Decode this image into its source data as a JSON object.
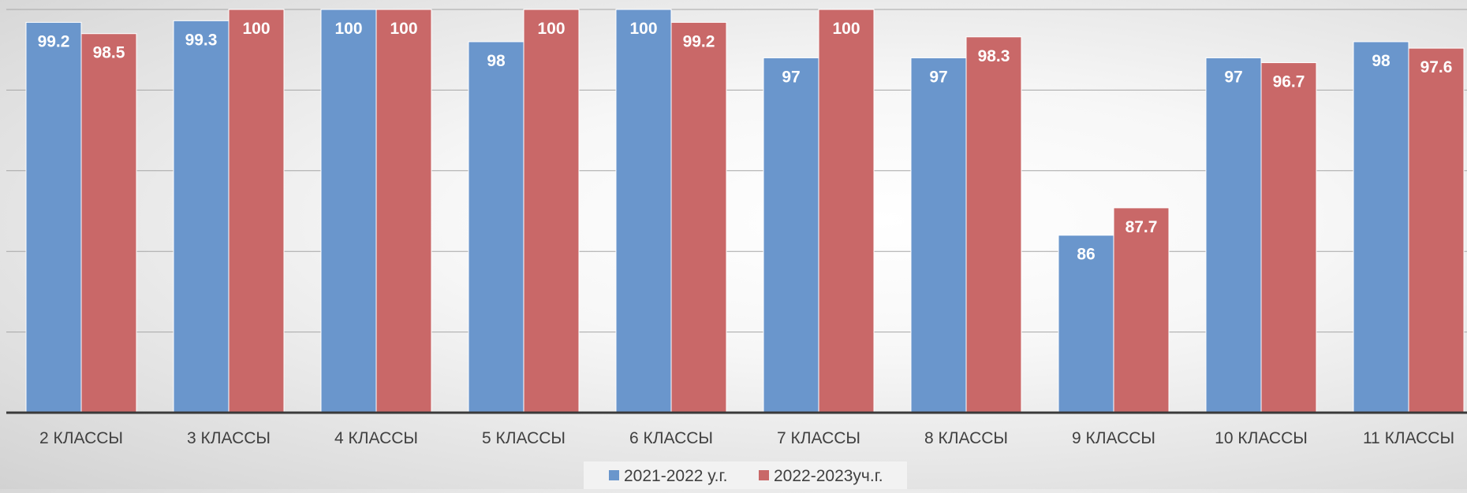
{
  "chart_data": {
    "type": "bar",
    "categories": [
      "2 КЛАССЫ",
      "3 КЛАССЫ",
      "4 КЛАССЫ",
      "5 КЛАССЫ",
      "6 КЛАССЫ",
      "7 КЛАССЫ",
      "8 КЛАССЫ",
      "9 КЛАССЫ",
      "10 КЛАССЫ",
      "11 КЛАССЫ"
    ],
    "series": [
      {
        "name": "2021-2022 у.г.",
        "color": "#6a96cc",
        "values": [
          99.2,
          99.3,
          100,
          98,
          100,
          97,
          97,
          86,
          97,
          98
        ],
        "labels": [
          "99.2",
          "99.3",
          "100",
          "98",
          "100",
          "97",
          "97",
          "86",
          "97",
          "98"
        ]
      },
      {
        "name": "2022-2023уч.г.",
        "color": "#c96868",
        "values": [
          98.5,
          100,
          100,
          100,
          99.2,
          100,
          98.3,
          87.7,
          96.7,
          97.6
        ],
        "labels": [
          "98.5",
          "100",
          "100",
          "100",
          "99.2",
          "100",
          "98.3",
          "87.7",
          "96.7",
          "97.6"
        ]
      }
    ],
    "ylim": [
      75,
      100
    ],
    "gridlines": true,
    "legend_position": "bottom",
    "title": "",
    "xlabel": "",
    "ylabel": ""
  }
}
